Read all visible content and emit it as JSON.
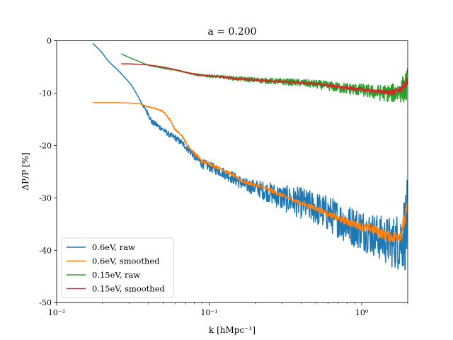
{
  "chart_data": {
    "type": "line",
    "title": "a = 0.200",
    "xlabel": "k [hMpc⁻¹]",
    "ylabel": "ΔP/P [%]",
    "xscale": "log",
    "xlim": [
      0.01,
      2.0
    ],
    "ylim": [
      -50,
      0
    ],
    "xticks": [
      {
        "value": 0.01,
        "label": "10⁻²"
      },
      {
        "value": 0.1,
        "label": "10⁻¹"
      },
      {
        "value": 1.0,
        "label": "10⁰"
      }
    ],
    "yticks": [
      {
        "value": 0,
        "label": "0"
      },
      {
        "value": -10,
        "label": "-10"
      },
      {
        "value": -20,
        "label": "-20"
      },
      {
        "value": -30,
        "label": "-30"
      },
      {
        "value": -40,
        "label": "-40"
      },
      {
        "value": -50,
        "label": "-50"
      }
    ],
    "grid": false,
    "legend_position": "lower-left",
    "series": [
      {
        "name": "0.6eV, raw",
        "color": "#1f77b4",
        "x": [
          0.0173,
          0.0195,
          0.022,
          0.025,
          0.028,
          0.031,
          0.034,
          0.037,
          0.04,
          0.042,
          0.045,
          0.05,
          0.055,
          0.06,
          0.066,
          0.072,
          0.08,
          0.09,
          0.1,
          0.12,
          0.14,
          0.17,
          0.2,
          0.25,
          0.3,
          0.4,
          0.5,
          0.6,
          0.7,
          0.8,
          1.0,
          1.2,
          1.4,
          1.6,
          1.8,
          2.0
        ],
        "y": [
          -0.5,
          -2.0,
          -4.0,
          -5.5,
          -7.0,
          -8.5,
          -10.5,
          -12.5,
          -14.0,
          -15.5,
          -16.0,
          -17.0,
          -18.0,
          -18.5,
          -19.5,
          -20.5,
          -22.0,
          -23.5,
          -24.0,
          -25.0,
          -26.0,
          -27.5,
          -28.0,
          -29.0,
          -30.0,
          -31.0,
          -32.0,
          -33.0,
          -34.0,
          -35.0,
          -36.0,
          -37.0,
          -38.0,
          -38.5,
          -38.0,
          -35.0
        ],
        "noise": [
          0,
          0,
          0,
          0,
          0,
          0,
          0,
          0.3,
          0.5,
          0.5,
          0.5,
          0.5,
          0.5,
          0.6,
          0.6,
          0.7,
          0.8,
          0.9,
          1.0,
          1.0,
          1.2,
          1.3,
          1.5,
          2.0,
          2.5,
          3.0,
          3.2,
          3.5,
          3.6,
          3.8,
          4.0,
          4.2,
          4.5,
          5.0,
          6.0,
          9.0
        ]
      },
      {
        "name": "0.6eV, smoothed",
        "color": "#ff7f0e",
        "x": [
          0.0173,
          0.02,
          0.025,
          0.03,
          0.035,
          0.04,
          0.045,
          0.05,
          0.055,
          0.06,
          0.066,
          0.072,
          0.08,
          0.09,
          0.1,
          0.12,
          0.14,
          0.17,
          0.2,
          0.25,
          0.3,
          0.4,
          0.5,
          0.6,
          0.7,
          0.8,
          1.0,
          1.2,
          1.4,
          1.6,
          1.8,
          2.0
        ],
        "y": [
          -11.8,
          -11.8,
          -11.8,
          -11.9,
          -12.0,
          -12.6,
          -13.0,
          -13.5,
          -15.0,
          -17.0,
          -18.0,
          -20.0,
          -21.5,
          -23.0,
          -23.5,
          -24.5,
          -25.5,
          -27.0,
          -27.5,
          -28.5,
          -29.5,
          -31.0,
          -32.0,
          -33.0,
          -34.0,
          -34.5,
          -35.5,
          -36.0,
          -37.0,
          -37.5,
          -37.0,
          -32.0
        ],
        "noise": [
          0,
          0,
          0,
          0,
          0,
          0.1,
          0.1,
          0.2,
          0.2,
          0.2,
          0.2,
          0.3,
          0.3,
          0.3,
          0.3,
          0.3,
          0.3,
          0.3,
          0.3,
          0.4,
          0.4,
          0.4,
          0.5,
          0.5,
          0.6,
          0.7,
          0.8,
          0.9,
          1.0,
          1.1,
          1.3,
          1.8
        ]
      },
      {
        "name": "0.15eV, raw",
        "color": "#2ca02c",
        "x": [
          0.0265,
          0.03,
          0.035,
          0.04,
          0.05,
          0.06,
          0.07,
          0.08,
          0.09,
          0.1,
          0.12,
          0.15,
          0.2,
          0.3,
          0.4,
          0.5,
          0.6,
          0.7,
          0.8,
          1.0,
          1.2,
          1.4,
          1.6,
          1.8,
          2.0
        ],
        "y": [
          -2.5,
          -3.2,
          -4.0,
          -4.7,
          -5.2,
          -5.6,
          -6.0,
          -6.4,
          -6.6,
          -6.7,
          -6.9,
          -7.2,
          -7.5,
          -7.8,
          -8.0,
          -8.3,
          -8.6,
          -8.9,
          -9.1,
          -9.4,
          -9.8,
          -10.0,
          -10.0,
          -9.6,
          -8.5
        ],
        "noise": [
          0,
          0,
          0,
          0,
          0.1,
          0.1,
          0.1,
          0.2,
          0.2,
          0.3,
          0.3,
          0.4,
          0.5,
          0.6,
          0.7,
          0.8,
          0.9,
          1.0,
          1.1,
          1.2,
          1.4,
          1.6,
          1.8,
          2.2,
          3.5
        ]
      },
      {
        "name": "0.15eV, smoothed",
        "color": "#d62728",
        "x": [
          0.0265,
          0.03,
          0.035,
          0.04,
          0.05,
          0.06,
          0.07,
          0.08,
          0.09,
          0.1,
          0.12,
          0.15,
          0.2,
          0.3,
          0.4,
          0.5,
          0.6,
          0.7,
          0.8,
          1.0,
          1.2,
          1.4,
          1.6,
          1.8,
          2.0
        ],
        "y": [
          -4.4,
          -4.4,
          -4.5,
          -4.6,
          -5.0,
          -5.5,
          -6.0,
          -6.4,
          -6.6,
          -6.7,
          -6.9,
          -7.2,
          -7.5,
          -7.8,
          -8.0,
          -8.2,
          -8.5,
          -8.8,
          -9.0,
          -9.3,
          -9.6,
          -9.8,
          -9.8,
          -9.3,
          -7.8
        ],
        "noise": [
          0,
          0,
          0,
          0,
          0,
          0.05,
          0.05,
          0.1,
          0.1,
          0.1,
          0.1,
          0.15,
          0.15,
          0.2,
          0.2,
          0.2,
          0.25,
          0.3,
          0.3,
          0.3,
          0.35,
          0.4,
          0.5,
          0.6,
          0.9
        ]
      }
    ]
  }
}
